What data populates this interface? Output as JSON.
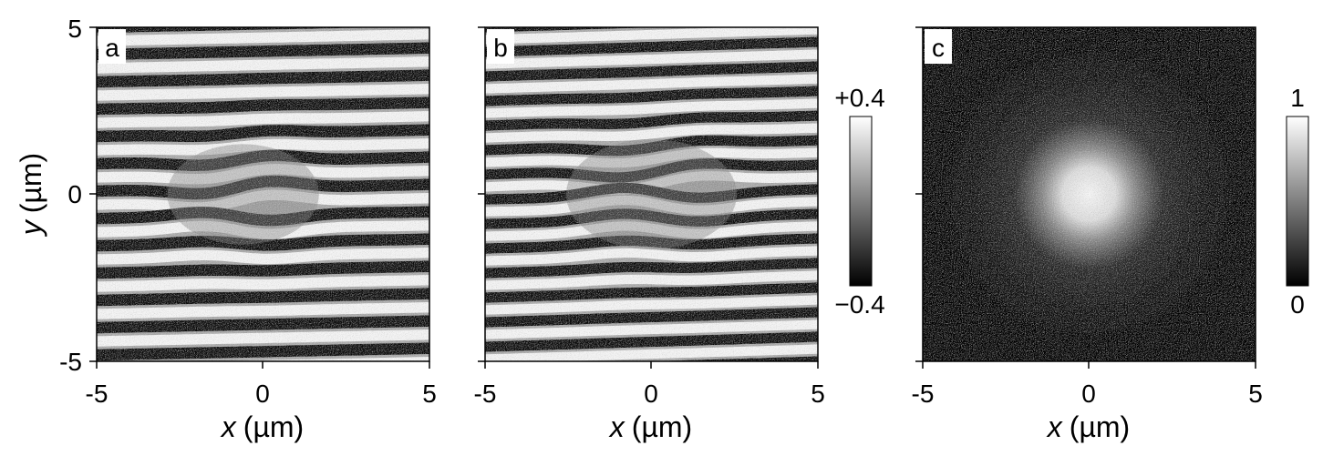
{
  "chart_data": [
    {
      "type": "heatmap",
      "panel_label": "a",
      "xlabel_var": "x",
      "xlabel_unit": "(µm)",
      "ylabel_var": "y",
      "ylabel_unit": "(µm)",
      "xlim": [
        -5,
        5
      ],
      "ylim": [
        -5,
        5
      ],
      "x_ticks": [
        "-5",
        "0",
        "5"
      ],
      "y_ticks": [
        "5",
        "0",
        "-5"
      ],
      "colormap": "gray",
      "pattern": "interference fringes (horizontal stripes) with a distorted central region"
    },
    {
      "type": "heatmap",
      "panel_label": "b",
      "xlabel_var": "x",
      "xlabel_unit": "(µm)",
      "xlim": [
        -5,
        5
      ],
      "ylim": [
        -5,
        5
      ],
      "x_ticks": [
        "-5",
        "0",
        "5"
      ],
      "colormap": "gray",
      "pattern": "interference fringes (horizontal stripes) with a distorted central region",
      "colorbar": {
        "max_label": "+0.4",
        "min_label": "−0.4",
        "range": [
          -0.4,
          0.4
        ]
      }
    },
    {
      "type": "heatmap",
      "panel_label": "c",
      "xlabel_var": "x",
      "xlabel_unit": "(µm)",
      "xlim": [
        -5,
        5
      ],
      "ylim": [
        -5,
        5
      ],
      "x_ticks": [
        "-5",
        "0",
        "5"
      ],
      "colormap": "gray",
      "pattern": "bright Gaussian spot centered near (0, 0) on a dark background",
      "spot_center": [
        0,
        0
      ],
      "colorbar": {
        "max_label": "1",
        "min_label": "0",
        "range": [
          0,
          1
        ]
      }
    }
  ]
}
